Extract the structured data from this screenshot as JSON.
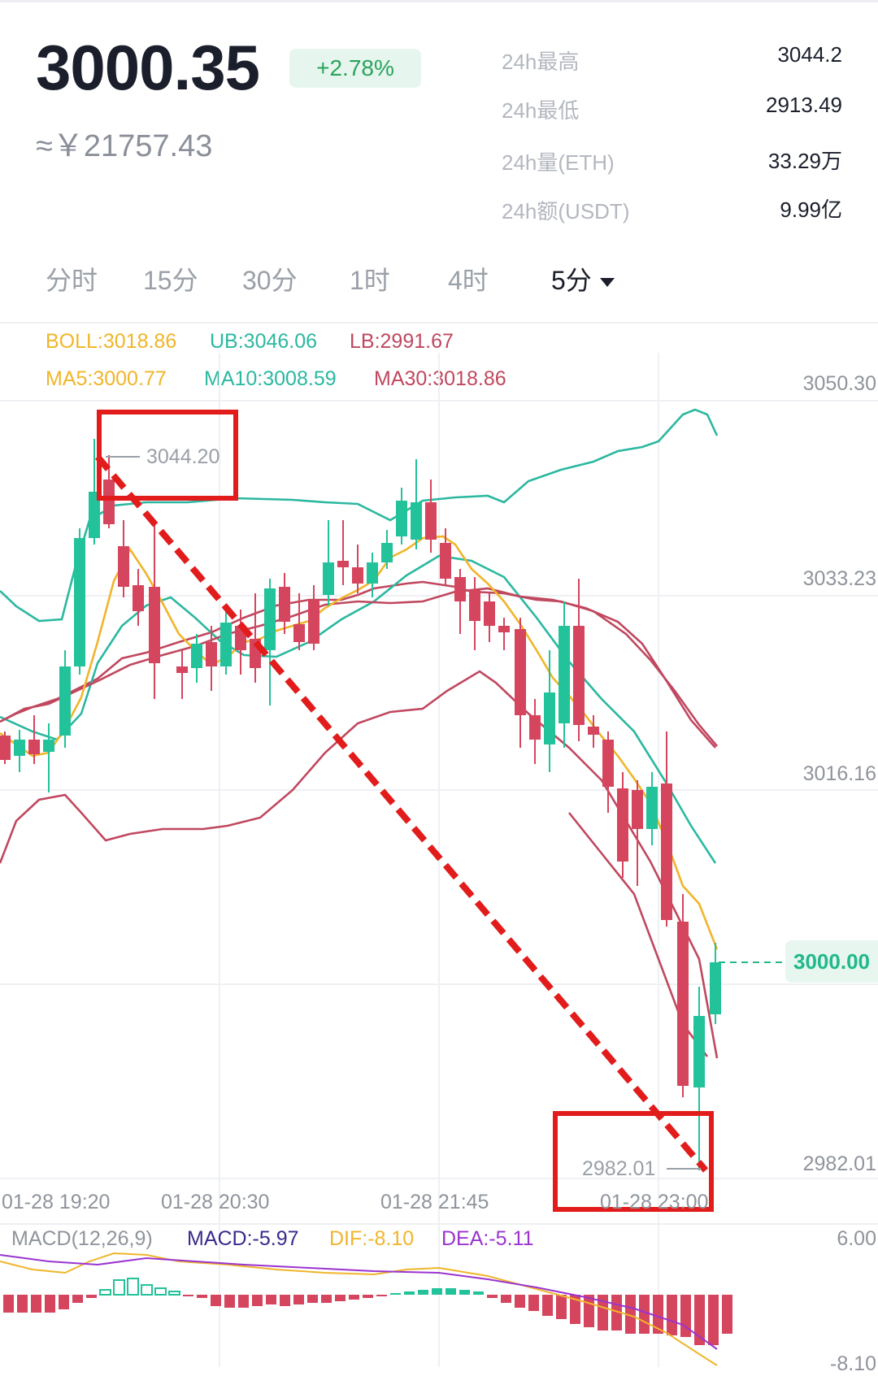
{
  "header": {
    "price": "3000.35",
    "change": "+2.78%",
    "cny": "≈￥21757.43",
    "stats": [
      {
        "label": "24h最高",
        "value": "3044.2"
      },
      {
        "label": "24h最低",
        "value": "2913.49"
      },
      {
        "label": "24h量(ETH)",
        "value": "33.29万"
      },
      {
        "label": "24h额(USDT)",
        "value": "9.99亿"
      }
    ]
  },
  "tabs": [
    "分时",
    "15分",
    "30分",
    "1时",
    "4时",
    "5分"
  ],
  "indicators": {
    "boll": "BOLL:3018.86",
    "ub": "UB:3046.06",
    "lb": "LB:2991.67",
    "ma5": "MA5:3000.77",
    "ma10": "MA10:3008.59",
    "ma30": "MA30:3018.86"
  },
  "y_axis": [
    "3050.30",
    "3033.23",
    "3016.16",
    "3000.00",
    "2982.01"
  ],
  "x_axis": [
    "01-28 19:20",
    "01-28 20:30",
    "01-28 21:45",
    "01-28 23:00"
  ],
  "annotations": {
    "high": "3044.20",
    "low": "2982.01"
  },
  "macd": {
    "title": "MACD(12,26,9)",
    "macd": "MACD:-5.97",
    "dif": "DIF:-8.10",
    "dea": "DEA:-5.11",
    "top": "6.00",
    "bottom": "-8.10"
  },
  "colors": {
    "up": "#22c29a",
    "down": "#d5455e",
    "ub": "#2bb8a0",
    "lb": "#c0485f",
    "ma5": "#f0b52a",
    "dea": "#9a34d0",
    "highlight": "#e21b1b"
  }
}
